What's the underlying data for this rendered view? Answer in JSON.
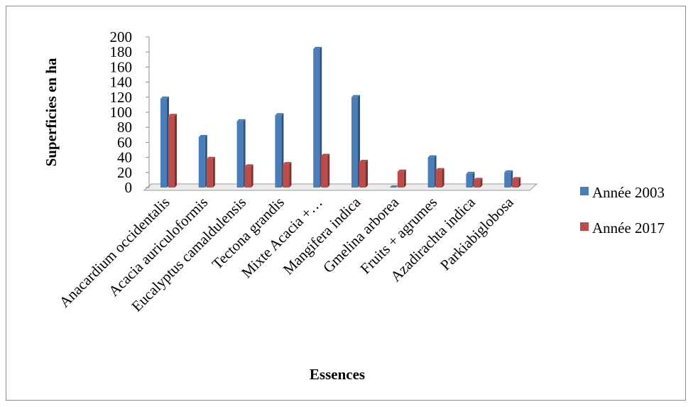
{
  "chart_data": {
    "type": "bar",
    "categories": [
      "Anacardium  occidentalis",
      "Acacia auriculoformis",
      "Eucalyptus  camaldulensis",
      "Tectona  grandis",
      "Mixte Acacia  +…",
      "Mangifera  indica",
      "Gmelina  arborea",
      "Fruits  + agrumes",
      "Azadirachta   indica",
      "Parkiabiglobosa"
    ],
    "series": [
      {
        "name": "Année 2003",
        "color": "#4a7ebb",
        "values": [
          118,
          67,
          88,
          96,
          184,
          120,
          0,
          40,
          18,
          20
        ]
      },
      {
        "name": "Année 2017",
        "color": "#be4b48",
        "values": [
          95,
          38,
          28,
          31,
          42,
          34,
          21,
          23,
          10,
          11
        ]
      }
    ],
    "xlabel": "Essences",
    "ylabel": "Superficies en ha",
    "ylim": [
      0,
      200
    ],
    "yticks": [
      "0",
      "20",
      "40",
      "60",
      "80",
      "100",
      "120",
      "140",
      "160",
      "180",
      "200"
    ],
    "grid": false,
    "legend_position": "right"
  }
}
